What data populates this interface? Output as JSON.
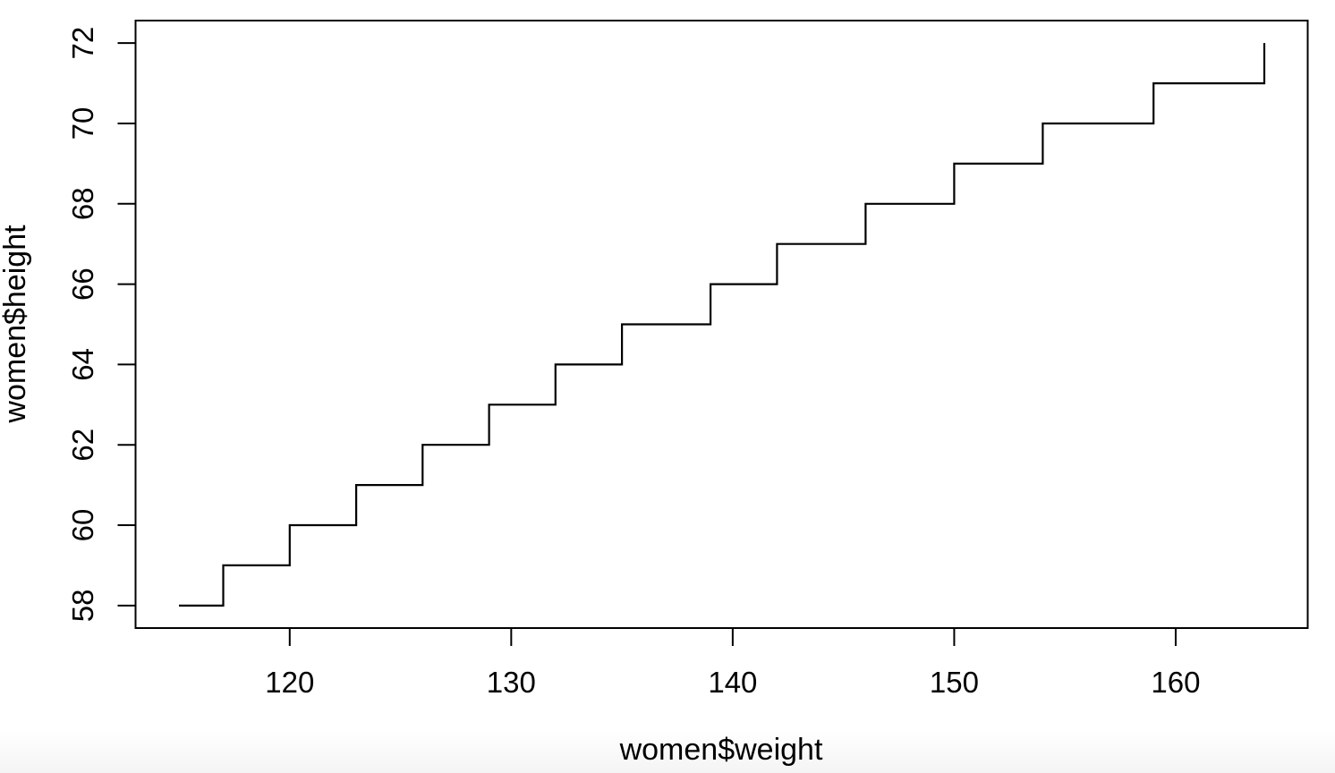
{
  "figure": {
    "background": "#ffffff",
    "foreground": "#000000"
  },
  "chart_data": {
    "type": "line",
    "subtype": "step-after (R type='s')",
    "title": "",
    "xlabel": "women$weight",
    "ylabel": "women$height",
    "series": [
      {
        "name": "women",
        "x": [
          115,
          117,
          120,
          123,
          126,
          129,
          132,
          135,
          139,
          142,
          146,
          150,
          154,
          159,
          164
        ],
        "y": [
          58,
          59,
          60,
          61,
          62,
          63,
          64,
          65,
          66,
          67,
          68,
          69,
          70,
          71,
          72
        ]
      }
    ],
    "x_ticks": [
      120,
      130,
      140,
      150,
      160
    ],
    "y_ticks": [
      58,
      60,
      62,
      64,
      66,
      68,
      70,
      72
    ],
    "xlim": [
      113.04,
      165.96
    ],
    "ylim": [
      57.44,
      72.56
    ],
    "grid": false,
    "legend": null,
    "box": true,
    "line_color": "#000000",
    "axis_color": "#000000"
  }
}
